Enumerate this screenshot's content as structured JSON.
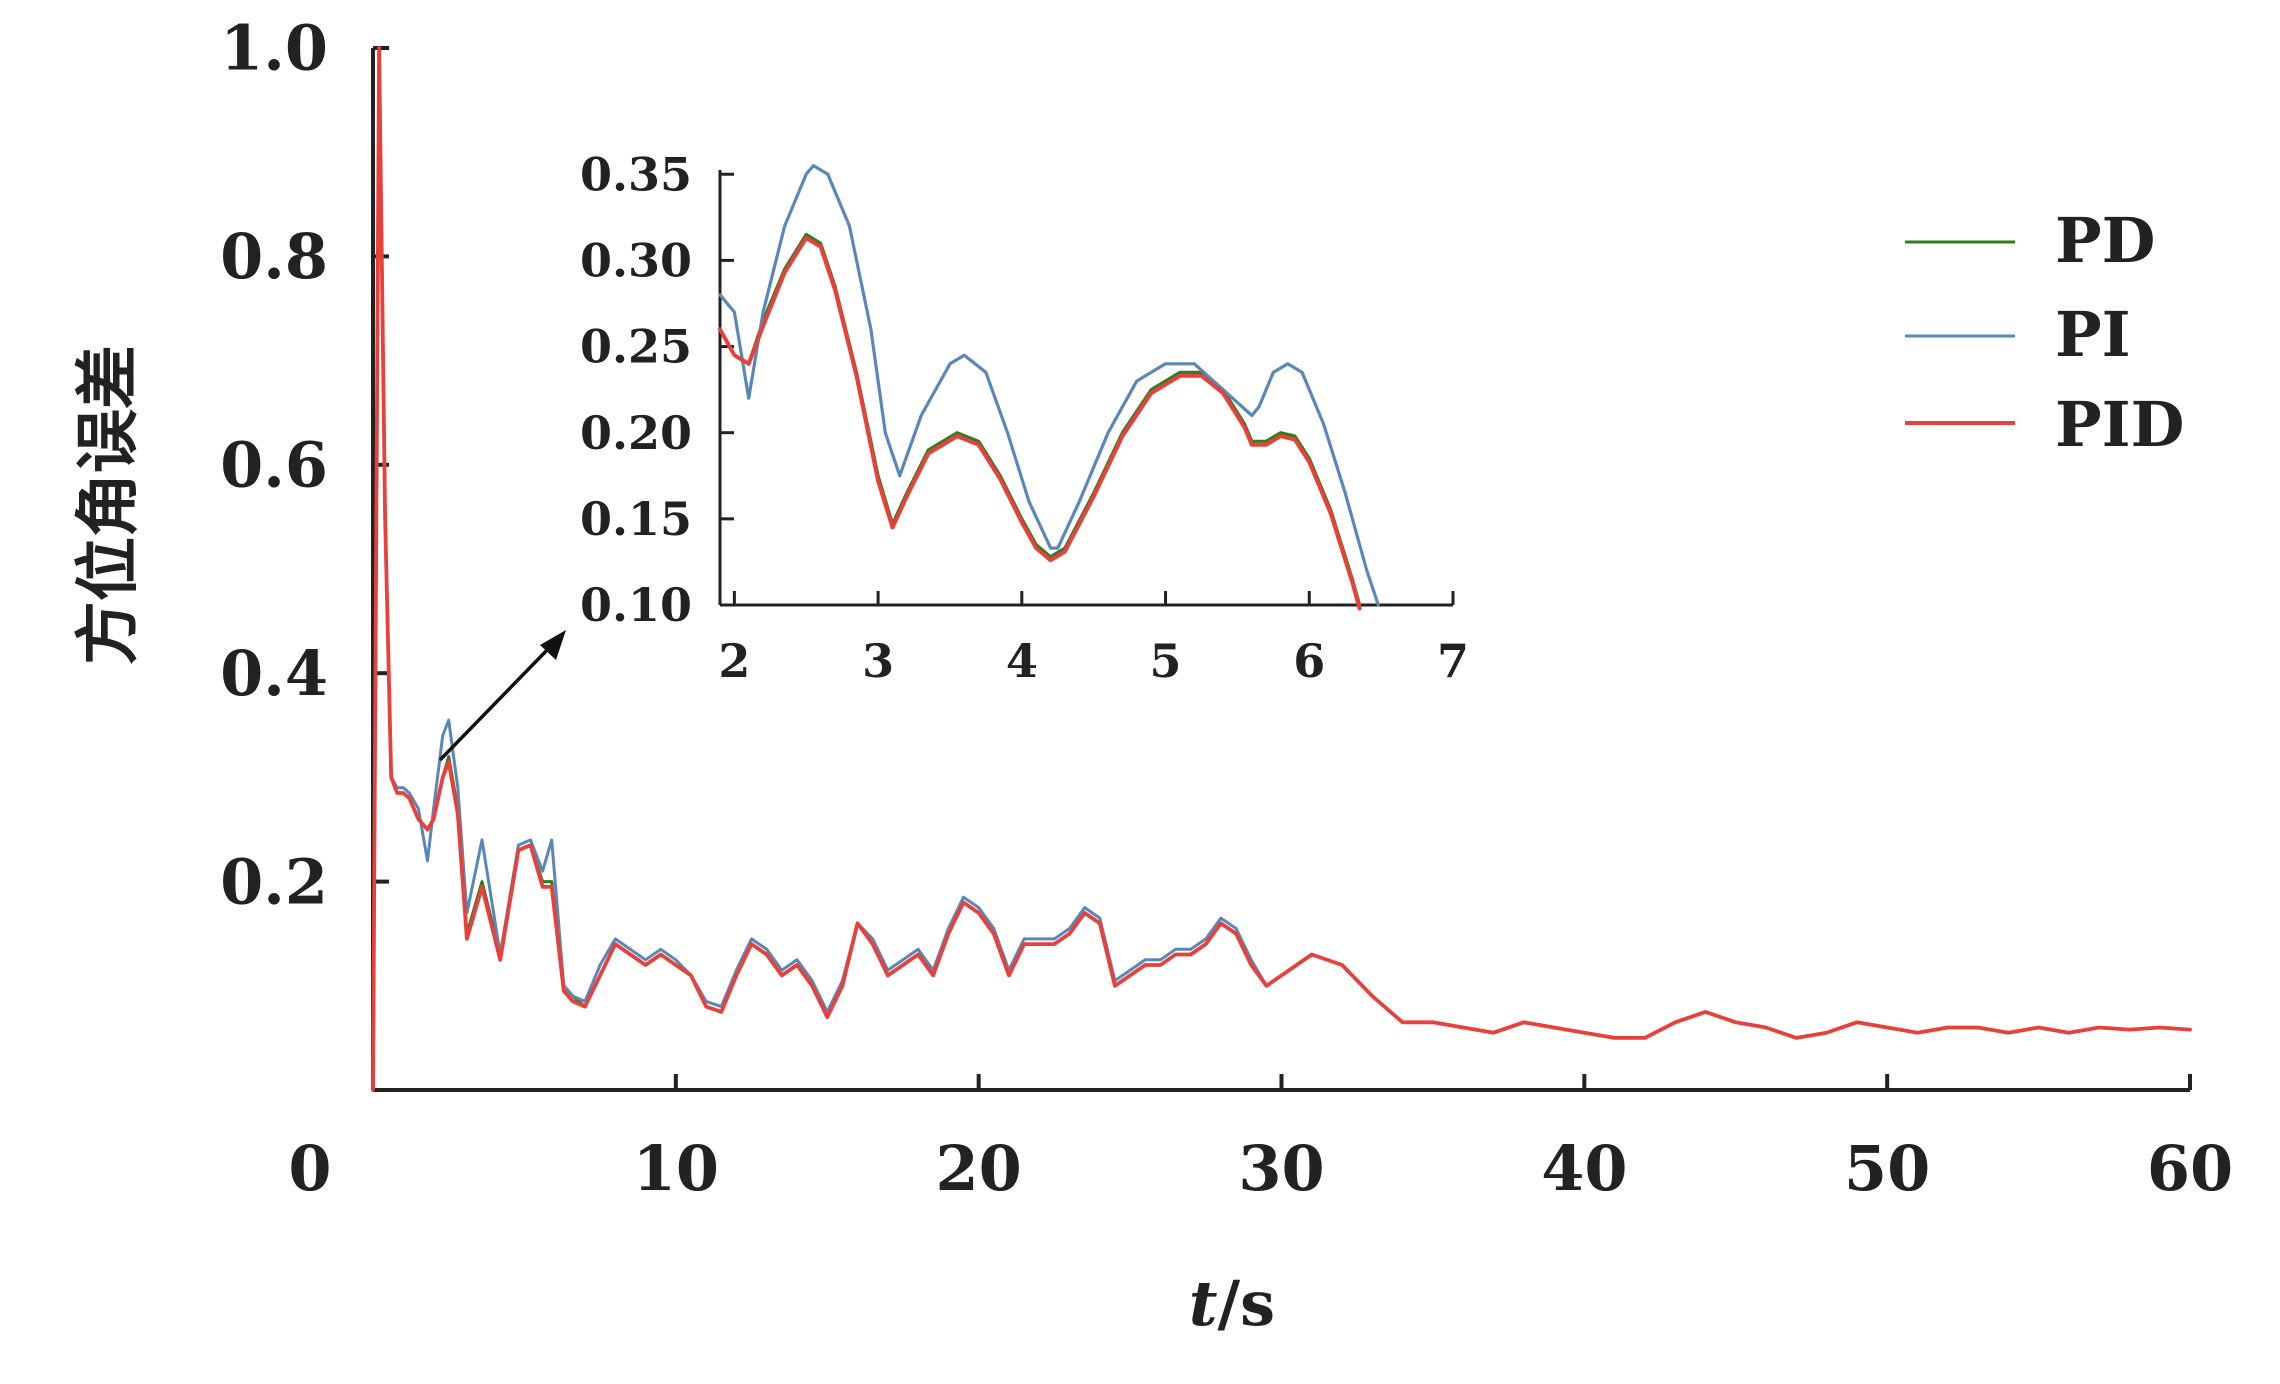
{
  "colors": {
    "PD": "#2e7d1f",
    "PI": "#5b86b8",
    "PID": "#e8403a"
  },
  "chart_data": [
    {
      "type": "line",
      "xlabel_italic": "t",
      "xlabel_rest": "/s",
      "ylabel": "方位角误差",
      "xlim": [
        0,
        60
      ],
      "ylim": [
        0,
        1.0
      ],
      "xticks": [
        0,
        10,
        20,
        30,
        40,
        50,
        60
      ],
      "xtick_labels": [
        "0",
        "10",
        "20",
        "30",
        "40",
        "50",
        "60"
      ],
      "yticks": [
        0.2,
        0.4,
        0.6,
        0.8,
        1.0
      ],
      "ytick_labels": [
        "0.2",
        "0.4",
        "0.6",
        "0.8",
        "1.0"
      ],
      "legend_position": "top-right",
      "series": [
        {
          "name": "PD",
          "x": [
            0,
            0.2,
            0.4,
            0.6,
            0.8,
            1.0,
            1.2,
            1.5,
            1.8,
            2.0,
            2.3,
            2.5,
            2.8,
            3.1,
            3.6,
            4.2,
            4.8,
            5.2,
            5.6,
            5.9,
            6.3,
            6.6,
            7.0,
            7.5,
            8.0,
            8.5,
            9.0,
            9.5,
            10.0,
            10.5,
            11.0,
            11.5,
            12.0,
            12.5,
            13.0,
            13.5,
            14.0,
            14.5,
            15.0,
            15.5,
            16.0,
            16.5,
            17.0,
            17.5,
            18.0,
            18.5,
            19.0,
            19.5,
            20.0,
            20.5,
            21.0,
            21.5,
            22.0,
            22.5,
            23.0,
            23.5,
            24.0,
            24.5,
            25.0,
            25.5,
            26.0,
            26.5,
            27.0,
            27.5,
            28.0,
            28.5,
            29.0,
            29.5,
            30.0,
            31.0,
            32.0,
            33.0,
            34.0,
            35.0,
            36.0,
            37.0,
            38.0,
            39.0,
            40.0,
            41.0,
            42.0,
            43.0,
            44.0,
            45.0,
            46.0,
            47.0,
            48.0,
            49.0,
            50.0,
            51.0,
            52.0,
            53.0,
            54.0,
            55.0,
            56.0,
            57.0,
            58.0,
            59.0,
            60.0
          ],
          "y": [
            0.0,
            1.0,
            0.55,
            0.3,
            0.285,
            0.285,
            0.28,
            0.26,
            0.25,
            0.26,
            0.3,
            0.32,
            0.27,
            0.15,
            0.2,
            0.13,
            0.23,
            0.235,
            0.2,
            0.2,
            0.1,
            0.09,
            0.08,
            0.11,
            0.14,
            0.13,
            0.12,
            0.13,
            0.12,
            0.11,
            0.08,
            0.075,
            0.11,
            0.14,
            0.13,
            0.11,
            0.12,
            0.1,
            0.07,
            0.1,
            0.16,
            0.14,
            0.11,
            0.12,
            0.13,
            0.11,
            0.15,
            0.18,
            0.17,
            0.15,
            0.11,
            0.14,
            0.14,
            0.14,
            0.15,
            0.17,
            0.16,
            0.1,
            0.11,
            0.12,
            0.12,
            0.13,
            0.13,
            0.14,
            0.16,
            0.15,
            0.12,
            0.1,
            0.11,
            0.13,
            0.12,
            0.09,
            0.065,
            0.065,
            0.06,
            0.055,
            0.065,
            0.06,
            0.055,
            0.05,
            0.05,
            0.065,
            0.075,
            0.065,
            0.06,
            0.05,
            0.055,
            0.065,
            0.06,
            0.055,
            0.06,
            0.06,
            0.055,
            0.06,
            0.055,
            0.06,
            0.058,
            0.06,
            0.058
          ]
        },
        {
          "name": "PI",
          "x": [
            0,
            0.2,
            0.4,
            0.6,
            0.8,
            1.0,
            1.2,
            1.5,
            1.8,
            2.0,
            2.3,
            2.5,
            2.8,
            3.1,
            3.6,
            4.2,
            4.8,
            5.2,
            5.6,
            5.9,
            6.3,
            6.6,
            7.0,
            7.5,
            8.0,
            8.5,
            9.0,
            9.5,
            10.0,
            10.5,
            11.0,
            11.5,
            12.0,
            12.5,
            13.0,
            13.5,
            14.0,
            14.5,
            15.0,
            15.5,
            16.0,
            16.5,
            17.0,
            17.5,
            18.0,
            18.5,
            19.0,
            19.5,
            20.0,
            20.5,
            21.0,
            21.5,
            22.0,
            22.5,
            23.0,
            23.5,
            24.0,
            24.5,
            25.0,
            25.5,
            26.0,
            26.5,
            27.0,
            27.5,
            28.0,
            28.5,
            29.0,
            29.5,
            30.0,
            31.0,
            32.0,
            33.0,
            34.0,
            35.0,
            36.0,
            37.0,
            38.0,
            39.0,
            40.0,
            41.0,
            42.0,
            43.0,
            44.0,
            45.0,
            46.0,
            47.0,
            48.0,
            49.0,
            50.0,
            51.0,
            52.0,
            53.0,
            54.0,
            55.0,
            56.0,
            57.0,
            58.0,
            59.0,
            60.0
          ],
          "y": [
            0.0,
            1.0,
            0.56,
            0.3,
            0.29,
            0.29,
            0.285,
            0.27,
            0.22,
            0.27,
            0.34,
            0.355,
            0.29,
            0.17,
            0.24,
            0.13,
            0.235,
            0.24,
            0.21,
            0.24,
            0.1,
            0.09,
            0.085,
            0.12,
            0.145,
            0.135,
            0.125,
            0.135,
            0.125,
            0.11,
            0.085,
            0.08,
            0.115,
            0.145,
            0.135,
            0.115,
            0.125,
            0.105,
            0.075,
            0.105,
            0.16,
            0.145,
            0.115,
            0.125,
            0.135,
            0.115,
            0.155,
            0.185,
            0.175,
            0.155,
            0.115,
            0.145,
            0.145,
            0.145,
            0.155,
            0.175,
            0.165,
            0.105,
            0.115,
            0.125,
            0.125,
            0.135,
            0.135,
            0.145,
            0.165,
            0.155,
            0.125,
            0.1,
            0.11,
            0.13,
            0.12,
            0.09,
            0.065,
            0.065,
            0.06,
            0.055,
            0.065,
            0.06,
            0.055,
            0.05,
            0.05,
            0.065,
            0.075,
            0.065,
            0.06,
            0.05,
            0.055,
            0.065,
            0.06,
            0.055,
            0.06,
            0.06,
            0.055,
            0.06,
            0.055,
            0.06,
            0.058,
            0.06,
            0.058
          ]
        },
        {
          "name": "PID",
          "x": [
            0,
            0.2,
            0.4,
            0.6,
            0.8,
            1.0,
            1.2,
            1.5,
            1.8,
            2.0,
            2.3,
            2.5,
            2.8,
            3.1,
            3.6,
            4.2,
            4.8,
            5.2,
            5.6,
            5.9,
            6.3,
            6.6,
            7.0,
            7.5,
            8.0,
            8.5,
            9.0,
            9.5,
            10.0,
            10.5,
            11.0,
            11.5,
            12.0,
            12.5,
            13.0,
            13.5,
            14.0,
            14.5,
            15.0,
            15.5,
            16.0,
            16.5,
            17.0,
            17.5,
            18.0,
            18.5,
            19.0,
            19.5,
            20.0,
            20.5,
            21.0,
            21.5,
            22.0,
            22.5,
            23.0,
            23.5,
            24.0,
            24.5,
            25.0,
            25.5,
            26.0,
            26.5,
            27.0,
            27.5,
            28.0,
            28.5,
            29.0,
            29.5,
            30.0,
            31.0,
            32.0,
            33.0,
            34.0,
            35.0,
            36.0,
            37.0,
            38.0,
            39.0,
            40.0,
            41.0,
            42.0,
            43.0,
            44.0,
            45.0,
            46.0,
            47.0,
            48.0,
            49.0,
            50.0,
            51.0,
            52.0,
            53.0,
            54.0,
            55.0,
            56.0,
            57.0,
            58.0,
            59.0,
            60.0
          ],
          "y": [
            0.0,
            1.0,
            0.55,
            0.3,
            0.285,
            0.285,
            0.28,
            0.26,
            0.25,
            0.26,
            0.3,
            0.315,
            0.265,
            0.145,
            0.195,
            0.125,
            0.23,
            0.235,
            0.195,
            0.195,
            0.095,
            0.085,
            0.08,
            0.11,
            0.14,
            0.13,
            0.12,
            0.13,
            0.12,
            0.11,
            0.08,
            0.075,
            0.11,
            0.14,
            0.13,
            0.11,
            0.12,
            0.1,
            0.07,
            0.1,
            0.16,
            0.14,
            0.11,
            0.12,
            0.13,
            0.11,
            0.15,
            0.18,
            0.17,
            0.15,
            0.11,
            0.14,
            0.14,
            0.14,
            0.15,
            0.17,
            0.16,
            0.1,
            0.11,
            0.12,
            0.12,
            0.13,
            0.13,
            0.14,
            0.16,
            0.15,
            0.12,
            0.1,
            0.11,
            0.13,
            0.12,
            0.09,
            0.065,
            0.065,
            0.06,
            0.055,
            0.065,
            0.06,
            0.055,
            0.05,
            0.05,
            0.065,
            0.075,
            0.065,
            0.06,
            0.05,
            0.055,
            0.065,
            0.06,
            0.055,
            0.06,
            0.06,
            0.055,
            0.06,
            0.055,
            0.06,
            0.058,
            0.06,
            0.058
          ]
        }
      ]
    },
    {
      "type": "line",
      "xlim": [
        1.9,
        7
      ],
      "ylim": [
        0.1,
        0.36
      ],
      "xticks": [
        2,
        3,
        4,
        5,
        6,
        7
      ],
      "xtick_labels": [
        "2",
        "3",
        "4",
        "5",
        "6",
        "7"
      ],
      "yticks": [
        0.1,
        0.15,
        0.2,
        0.25,
        0.3,
        0.35
      ],
      "ytick_labels": [
        "0.10",
        "0.15",
        "0.20",
        "0.25",
        "0.30",
        "0.35"
      ],
      "series": [
        {
          "name": "PD",
          "x": [
            1.9,
            2.0,
            2.1,
            2.2,
            2.35,
            2.5,
            2.6,
            2.7,
            2.85,
            3.0,
            3.1,
            3.2,
            3.35,
            3.55,
            3.7,
            3.85,
            4.0,
            4.1,
            4.2,
            4.3,
            4.5,
            4.7,
            4.9,
            5.1,
            5.25,
            5.4,
            5.55,
            5.6,
            5.7,
            5.8,
            5.9,
            6.0,
            6.15,
            6.3,
            6.35
          ],
          "y": [
            0.26,
            0.245,
            0.24,
            0.265,
            0.295,
            0.315,
            0.31,
            0.285,
            0.235,
            0.175,
            0.147,
            0.165,
            0.19,
            0.2,
            0.195,
            0.175,
            0.15,
            0.135,
            0.128,
            0.133,
            0.165,
            0.2,
            0.225,
            0.235,
            0.235,
            0.225,
            0.205,
            0.195,
            0.195,
            0.2,
            0.198,
            0.185,
            0.155,
            0.115,
            0.1
          ]
        },
        {
          "name": "PI",
          "x": [
            1.9,
            2.0,
            2.1,
            2.2,
            2.35,
            2.5,
            2.55,
            2.65,
            2.8,
            2.95,
            3.05,
            3.15,
            3.3,
            3.5,
            3.6,
            3.75,
            3.9,
            4.05,
            4.2,
            4.25,
            4.4,
            4.6,
            4.8,
            5.0,
            5.2,
            5.4,
            5.6,
            5.65,
            5.75,
            5.85,
            5.95,
            6.1,
            6.25,
            6.4,
            6.48
          ],
          "y": [
            0.28,
            0.27,
            0.22,
            0.27,
            0.32,
            0.35,
            0.355,
            0.35,
            0.32,
            0.26,
            0.2,
            0.175,
            0.21,
            0.24,
            0.245,
            0.235,
            0.2,
            0.16,
            0.133,
            0.133,
            0.16,
            0.2,
            0.23,
            0.24,
            0.24,
            0.225,
            0.21,
            0.215,
            0.235,
            0.24,
            0.235,
            0.205,
            0.165,
            0.12,
            0.1
          ]
        },
        {
          "name": "PID",
          "x": [
            1.9,
            2.0,
            2.1,
            2.2,
            2.35,
            2.5,
            2.6,
            2.7,
            2.85,
            3.0,
            3.1,
            3.2,
            3.35,
            3.55,
            3.7,
            3.85,
            4.0,
            4.1,
            4.2,
            4.3,
            4.5,
            4.7,
            4.9,
            5.1,
            5.25,
            5.4,
            5.55,
            5.6,
            5.7,
            5.8,
            5.9,
            6.0,
            6.15,
            6.3,
            6.35
          ],
          "y": [
            0.26,
            0.245,
            0.24,
            0.262,
            0.293,
            0.313,
            0.308,
            0.283,
            0.233,
            0.172,
            0.145,
            0.163,
            0.188,
            0.198,
            0.193,
            0.173,
            0.148,
            0.133,
            0.126,
            0.131,
            0.163,
            0.198,
            0.223,
            0.233,
            0.233,
            0.223,
            0.203,
            0.193,
            0.193,
            0.198,
            0.196,
            0.183,
            0.153,
            0.113,
            0.098
          ]
        }
      ]
    }
  ]
}
